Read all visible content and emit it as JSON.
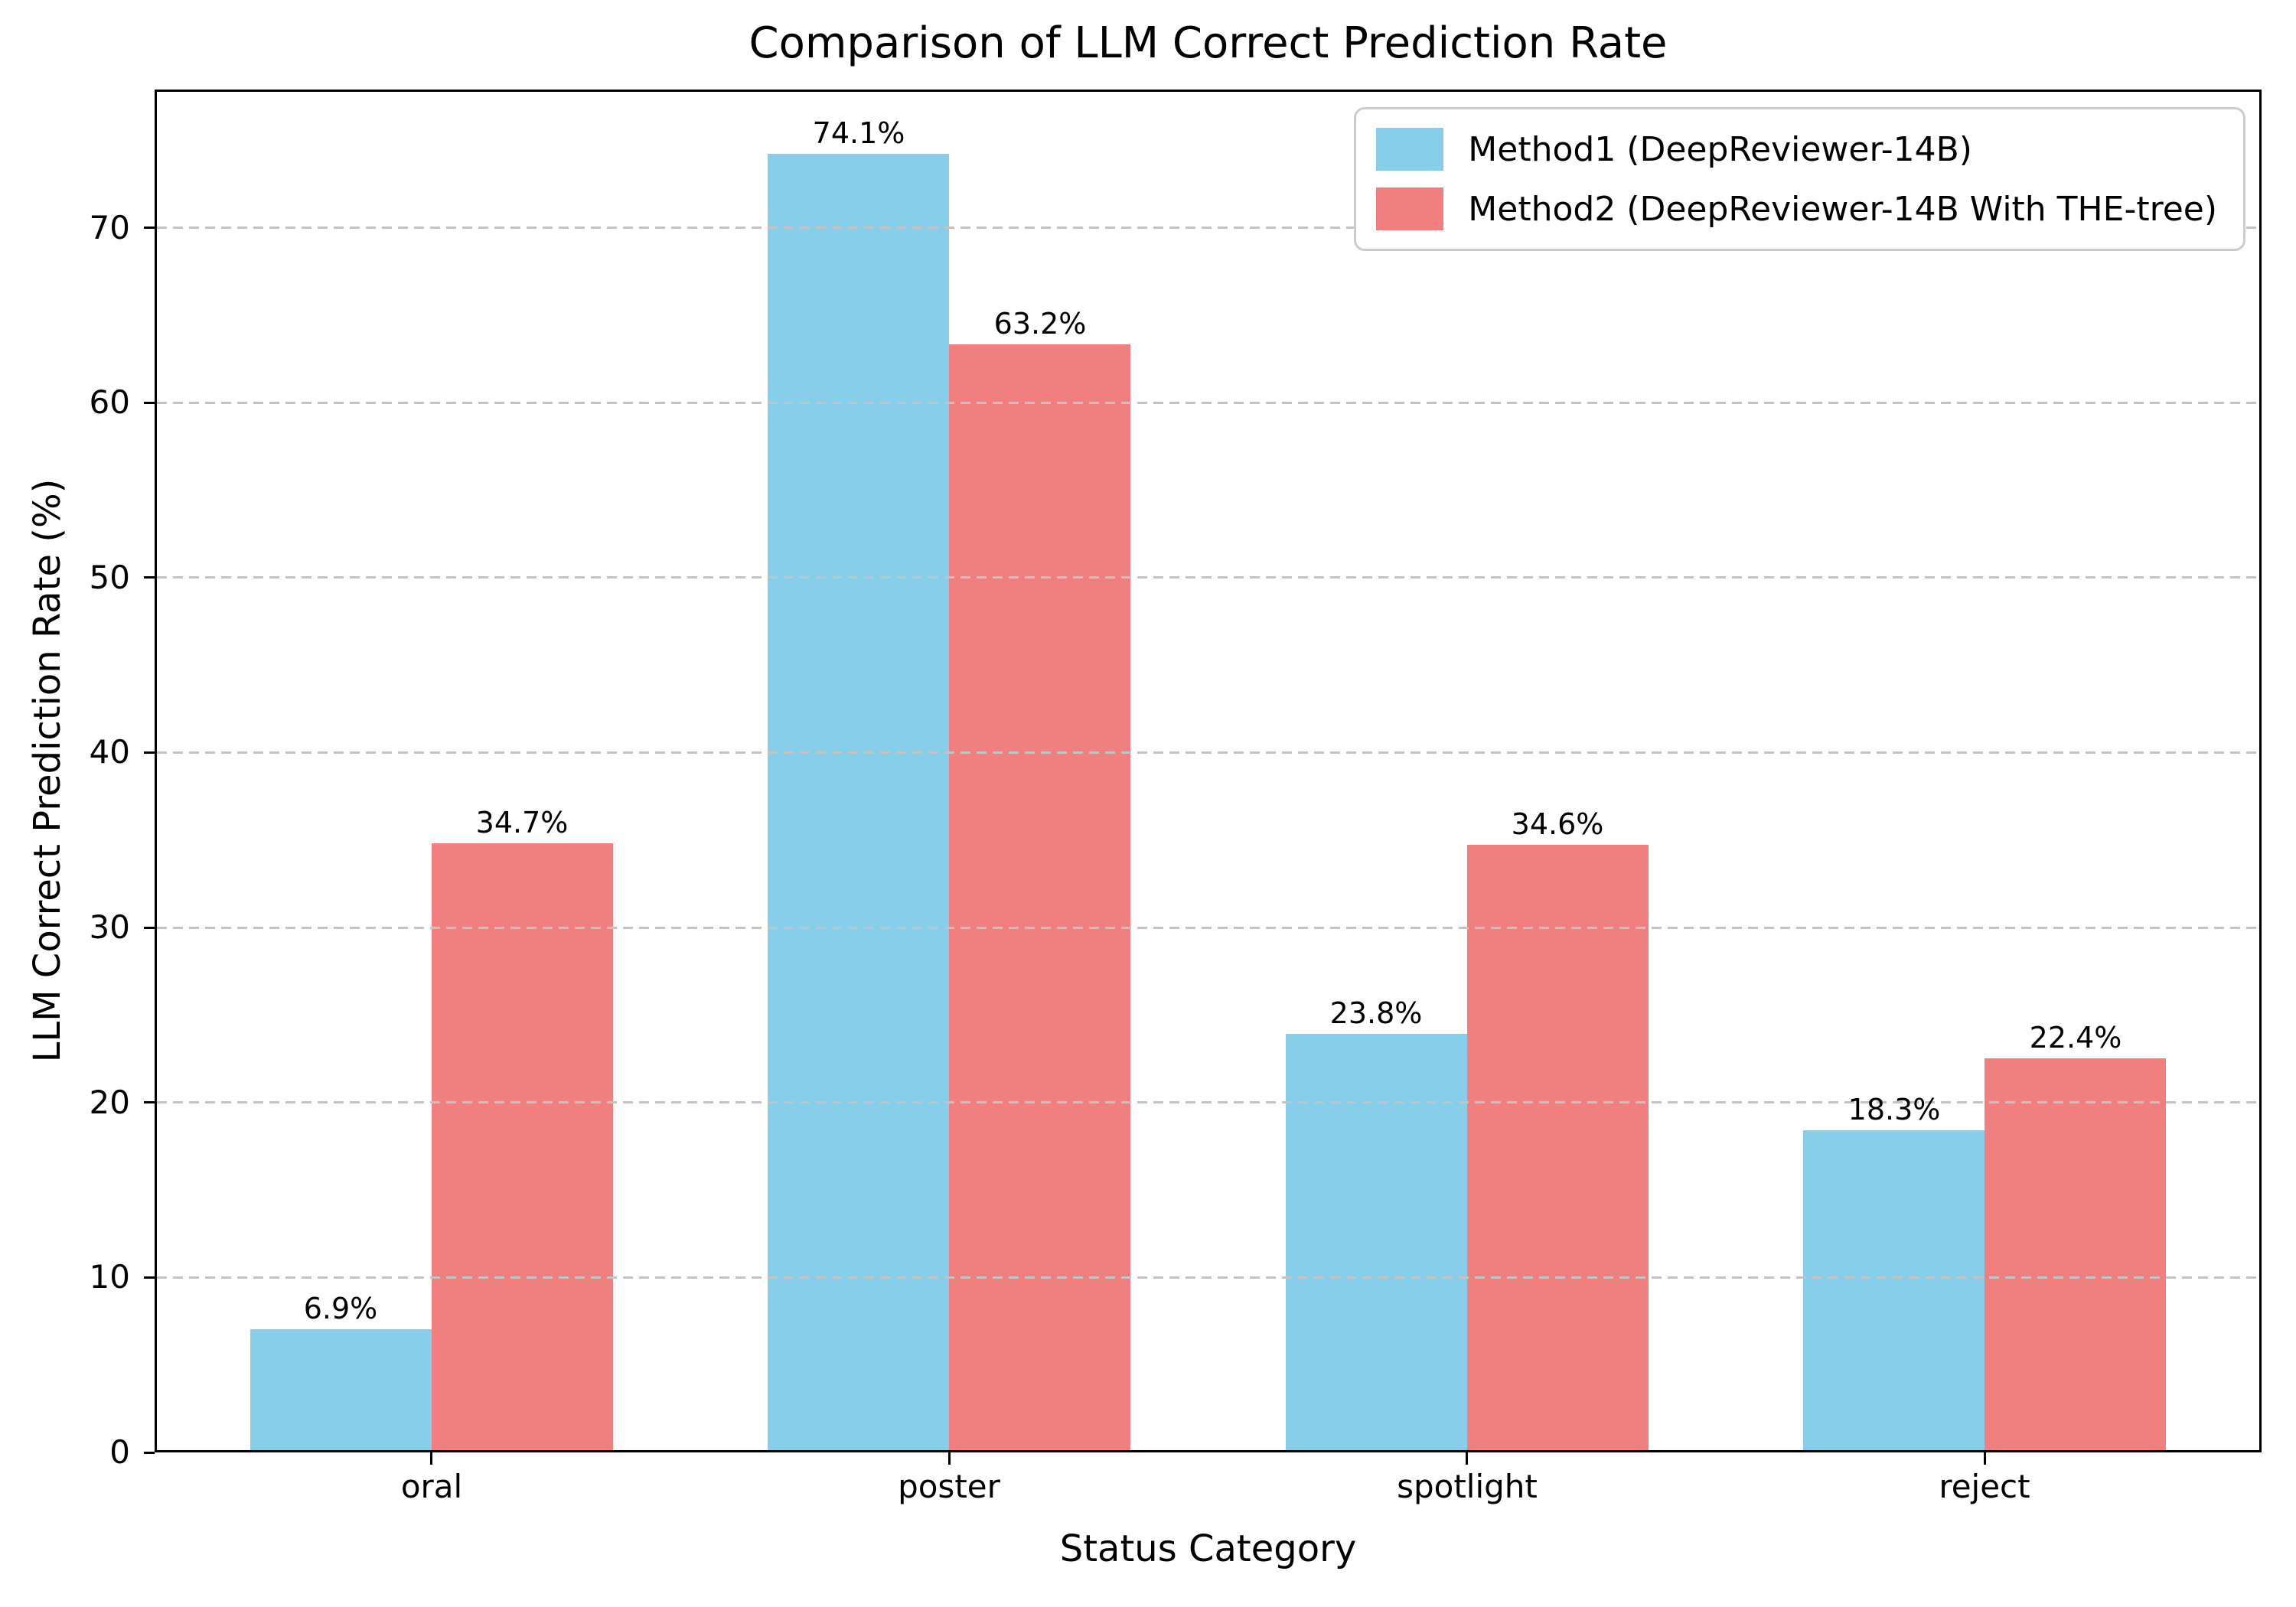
{
  "chart_data": {
    "type": "bar",
    "title": "Comparison of LLM Correct Prediction Rate",
    "xlabel": "Status Category",
    "ylabel": "LLM Correct Prediction Rate (%)",
    "categories": [
      "oral",
      "poster",
      "spotlight",
      "reject"
    ],
    "series": [
      {
        "name": "Method1 (DeepReviewer-14B)",
        "color": "#87CEEB",
        "values": [
          6.9,
          74.1,
          23.8,
          18.3
        ],
        "value_labels": [
          "6.9%",
          "74.1%",
          "23.8%",
          "18.3%"
        ]
      },
      {
        "name": "Method2 (DeepReviewer-14B With THE-tree)",
        "color": "#F08080",
        "values": [
          34.7,
          63.2,
          34.6,
          22.4
        ],
        "value_labels": [
          "34.7%",
          "63.2%",
          "34.6%",
          "22.4%"
        ]
      }
    ],
    "yticks": [
      0,
      10,
      20,
      30,
      40,
      50,
      60,
      70
    ],
    "ytick_labels": [
      "0",
      "10",
      "20",
      "30",
      "40",
      "50",
      "60",
      "70"
    ],
    "ylim": [
      0,
      77.9
    ],
    "xlim": [
      -0.535,
      3.535
    ],
    "bar_width": 0.35,
    "grid": {
      "axis": "y",
      "style": "dashed",
      "color": "#c3c3c3",
      "drawn_over_bars": true
    },
    "legend": {
      "position": "upper right",
      "border_color": "#cccccc",
      "background": "#ffffff"
    },
    "colors": {
      "axes": "#000000",
      "text": "#000000",
      "background": "#ffffff"
    }
  }
}
